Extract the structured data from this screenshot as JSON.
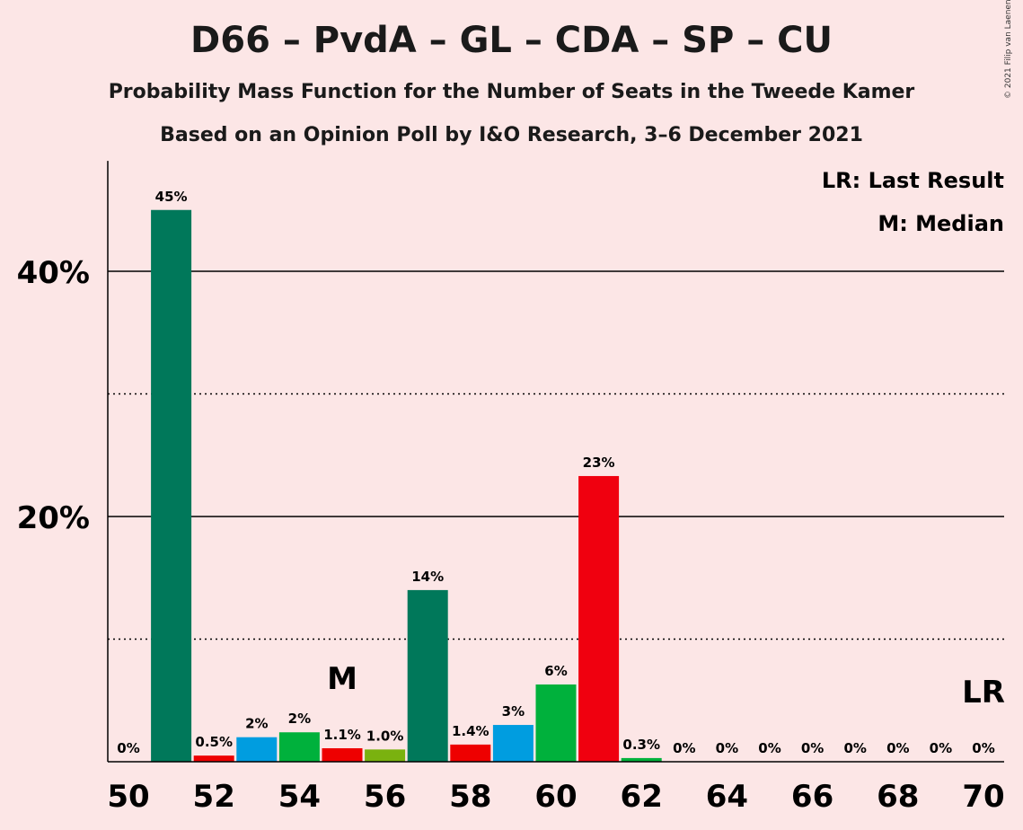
{
  "title": "D66 – PvdA – GL – CDA – SP – CU",
  "subtitle": "Probability Mass Function for the Number of Seats in the Tweede Kamer",
  "subtitle2": "Based on an Opinion Poll by I&O Research, 3–6 December 2021",
  "copyright": "© 2021 Filip van Laenen",
  "legend": {
    "last_result": "LR: Last Result",
    "median": "M: Median"
  },
  "markers": {
    "median_label": "M",
    "median_seat": 55,
    "last_result_label": "LR",
    "last_result_seat": 70
  },
  "colors": {
    "background": "#fce6e6",
    "d66": "#00785a",
    "pvda": "#f0000f",
    "gl": "#00b13c",
    "cda": "#009de0",
    "sp": "#ee0000",
    "cu": "#7ab20f"
  },
  "chart_data": {
    "type": "bar",
    "x": [
      50,
      51,
      52,
      53,
      54,
      55,
      56,
      57,
      58,
      59,
      60,
      61,
      62,
      63,
      64,
      65,
      66,
      67,
      68,
      69,
      70
    ],
    "values": [
      0,
      45,
      0.5,
      2,
      2.4,
      1.1,
      1.0,
      14,
      1.4,
      3,
      6.3,
      23.3,
      0.3,
      0,
      0,
      0,
      0,
      0,
      0,
      0,
      0
    ],
    "labels": [
      "0%",
      "45%",
      "0.5%",
      "2%",
      "2%",
      "1.1%",
      "1.0%",
      "14%",
      "1.4%",
      "3%",
      "6%",
      "23%",
      "0.3%",
      "0%",
      "0%",
      "0%",
      "0%",
      "0%",
      "0%",
      "0%",
      "0%"
    ],
    "bar_colors": [
      "#00785a",
      "#00785a",
      "#ee0000",
      "#009de0",
      "#00b13c",
      "#ee0000",
      "#7ab20f",
      "#00785a",
      "#ee0000",
      "#009de0",
      "#00b13c",
      "#f0000f",
      "#00b13c",
      "#00785a",
      "#00785a",
      "#00785a",
      "#00785a",
      "#00785a",
      "#00785a",
      "#00785a",
      "#00785a"
    ],
    "x_ticks": [
      "50",
      "52",
      "54",
      "56",
      "58",
      "60",
      "62",
      "64",
      "66",
      "68",
      "70"
    ],
    "y_ticks": [
      {
        "value": 20,
        "label": "20%"
      },
      {
        "value": 40,
        "label": "40%"
      }
    ],
    "minor_grid": [
      10,
      30
    ],
    "ylim": [
      0,
      49
    ],
    "grid": true,
    "legend_position": "top-right"
  }
}
